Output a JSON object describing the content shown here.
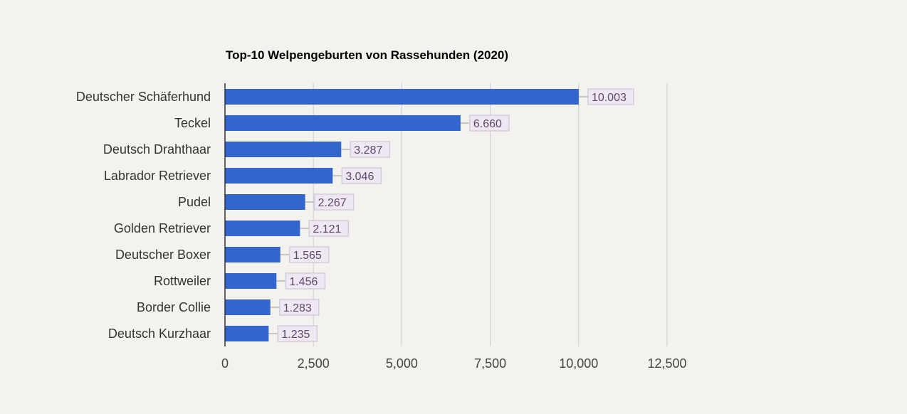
{
  "chart_data": {
    "type": "bar",
    "orientation": "horizontal",
    "title": "Top-10 Welpengeburten von Rassehunden (2020)",
    "xlabel": "",
    "ylabel": "",
    "categories": [
      "Deutscher Schäferhund",
      "Teckel",
      "Deutsch Drahthaar",
      "Labrador Retriever",
      "Pudel",
      "Golden Retriever",
      "Deutscher Boxer",
      "Rottweiler",
      "Border Collie",
      "Deutsch Kurzhaar"
    ],
    "values": [
      10003,
      6660,
      3287,
      3046,
      2267,
      2121,
      1565,
      1456,
      1283,
      1235
    ],
    "data_labels": [
      "10.003",
      "6.660",
      "3.287",
      "3.046",
      "2.267",
      "2.121",
      "1.565",
      "1.456",
      "1.283",
      "1.235"
    ],
    "xlim": [
      0,
      12500
    ],
    "x_ticks": [
      0,
      2500,
      5000,
      7500,
      10000,
      12500
    ],
    "x_tick_labels": [
      "0",
      "2,500",
      "5,000",
      "7,500",
      "10,000",
      "12,500"
    ],
    "grid": true,
    "colors": {
      "bar": "#3366cc",
      "label_bg": "#efe8f2",
      "label_border": "#d6cadb",
      "label_text": "#5a4a6a",
      "grid": "#cccccc"
    }
  }
}
